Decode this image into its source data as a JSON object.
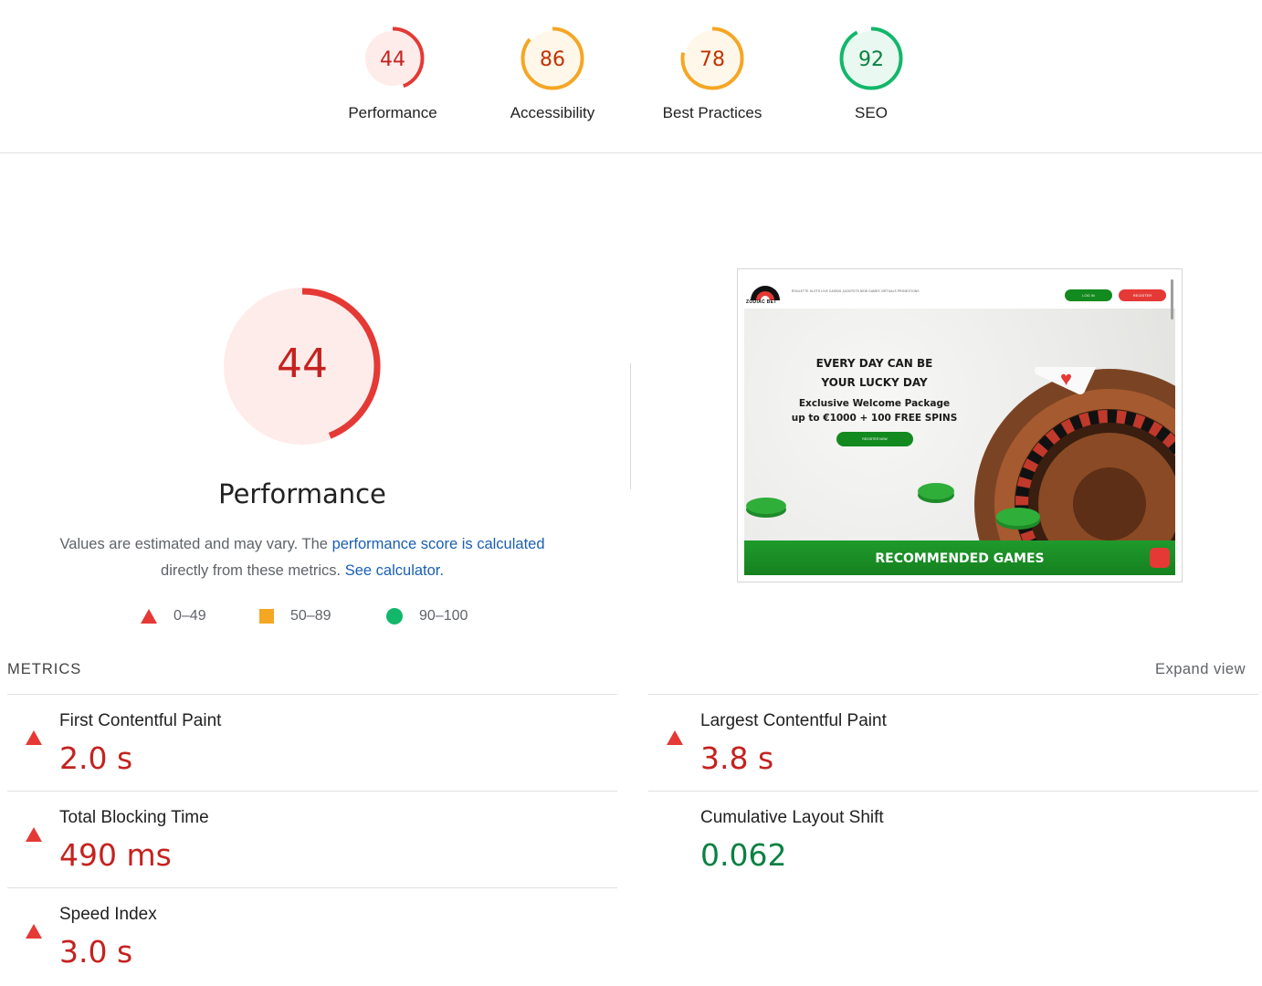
{
  "gauges": [
    {
      "label": "Performance",
      "score": "44",
      "fraction": 0.44,
      "color": "#e53935",
      "fill": "#fdecea",
      "text_color": "#c5221f"
    },
    {
      "label": "Accessibility",
      "score": "86",
      "fraction": 0.86,
      "color": "#f5a623",
      "fill": "#fff7ea",
      "text_color": "#c33300"
    },
    {
      "label": "Best Practices",
      "score": "78",
      "fraction": 0.78,
      "color": "#f5a623",
      "fill": "#fff7ea",
      "text_color": "#c33300"
    },
    {
      "label": "SEO",
      "score": "92",
      "fraction": 0.92,
      "color": "#12b76a",
      "fill": "#e9f8f0",
      "text_color": "#0b8043"
    }
  ],
  "performance": {
    "score": "44",
    "fraction": 0.44,
    "title": "Performance",
    "desc_text_1": "Values are estimated and may vary. The ",
    "desc_link_1": "performance score is calculated",
    "desc_text_2": "directly from these metrics. ",
    "desc_link_2": "See calculator."
  },
  "legend": {
    "fail_range": "0–49",
    "average_range": "50–89",
    "pass_range": "90–100"
  },
  "screenshot": {
    "logo_text": "ZODIAC BET",
    "nav_links": "ROULETTE  SLOTS  LIVE CASINO  JACKPOTS  NEW GAMES  VIRTUALS  PROMOTIONS",
    "login": "LOG IN",
    "register": "REGISTER",
    "headline_line1": "EVERY DAY CAN BE",
    "headline_line2": "YOUR LUCKY DAY",
    "sub_line1": "Exclusive Welcome Package",
    "sub_line2": "up to €1000 + 100 FREE SPINS",
    "cta": "REGISTER NOW",
    "recommended": "RECOMMENDED GAMES"
  },
  "metrics": {
    "heading": "METRICS",
    "expand_label": "Expand view",
    "items": [
      {
        "label": "First Contentful Paint",
        "value": "2.0 s",
        "status": "fail"
      },
      {
        "label": "Largest Contentful Paint",
        "value": "3.8 s",
        "status": "fail"
      },
      {
        "label": "Total Blocking Time",
        "value": "490 ms",
        "status": "fail"
      },
      {
        "label": "Cumulative Layout Shift",
        "value": "0.062",
        "status": "pass"
      },
      {
        "label": "Speed Index",
        "value": "3.0 s",
        "status": "fail"
      }
    ]
  }
}
